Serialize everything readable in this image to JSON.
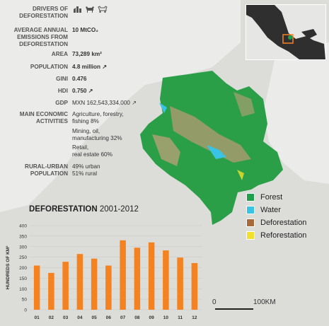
{
  "stats": [
    {
      "label": "DRIVERS OF\nDEFORESTATION",
      "value": ""
    },
    {
      "label": "AVERAGE ANNUAL\nEMISSIONS FROM\nDEFORESTATION",
      "value": "10 MtCO₂"
    },
    {
      "label": "AREA",
      "value": "73,289 km²"
    },
    {
      "label": "POPULATION",
      "value": "4.8 million ↗"
    },
    {
      "label": "GINI",
      "value": "0.476"
    },
    {
      "label": "HDI",
      "value": "0.750 ↗"
    },
    {
      "label": "GDP",
      "value": "MXN 162,543,334,000 ↗"
    },
    {
      "label": "MAIN ECONOMIC\nACTIVITIES",
      "value": "Agriculture, forestry,\nfishing 8%"
    },
    {
      "label": "",
      "value": "Mining, oil,\nmanufacturing 32%"
    },
    {
      "label": "",
      "value": "Retail,\nreal estate 60%"
    },
    {
      "label": "RURAL-URBAN\nPOPULATION",
      "value": "49% urban\n51% rural"
    }
  ],
  "driver_icons": [
    "oil-palm-icon",
    "cattle-icon",
    "livestock-icon"
  ],
  "legend": [
    {
      "label": "Forest",
      "color": "#1fa04a"
    },
    {
      "label": "Water",
      "color": "#39c3e5"
    },
    {
      "label": "Deforestation",
      "color": "#a86a3a"
    },
    {
      "label": "Reforestation",
      "color": "#f2e12c"
    }
  ],
  "scale": {
    "start": "0",
    "end": "100KM"
  },
  "chart_title": {
    "bold": "DEFORESTATION",
    "rest": "2001-2012"
  },
  "chart_data": {
    "type": "bar",
    "title": "DEFORESTATION 2001-2012",
    "ylabel": "HUNDREDS OF KM²",
    "xlabel": "",
    "categories": [
      "01",
      "02",
      "03",
      "04",
      "05",
      "06",
      "07",
      "08",
      "09",
      "10",
      "11",
      "12"
    ],
    "values": [
      210,
      175,
      228,
      265,
      243,
      210,
      330,
      295,
      320,
      282,
      248,
      222
    ],
    "ylim": [
      0,
      400
    ],
    "yticks": [
      0,
      50,
      100,
      150,
      200,
      250,
      300,
      350,
      400
    ],
    "bar_color": "#f58220",
    "grid": true
  }
}
